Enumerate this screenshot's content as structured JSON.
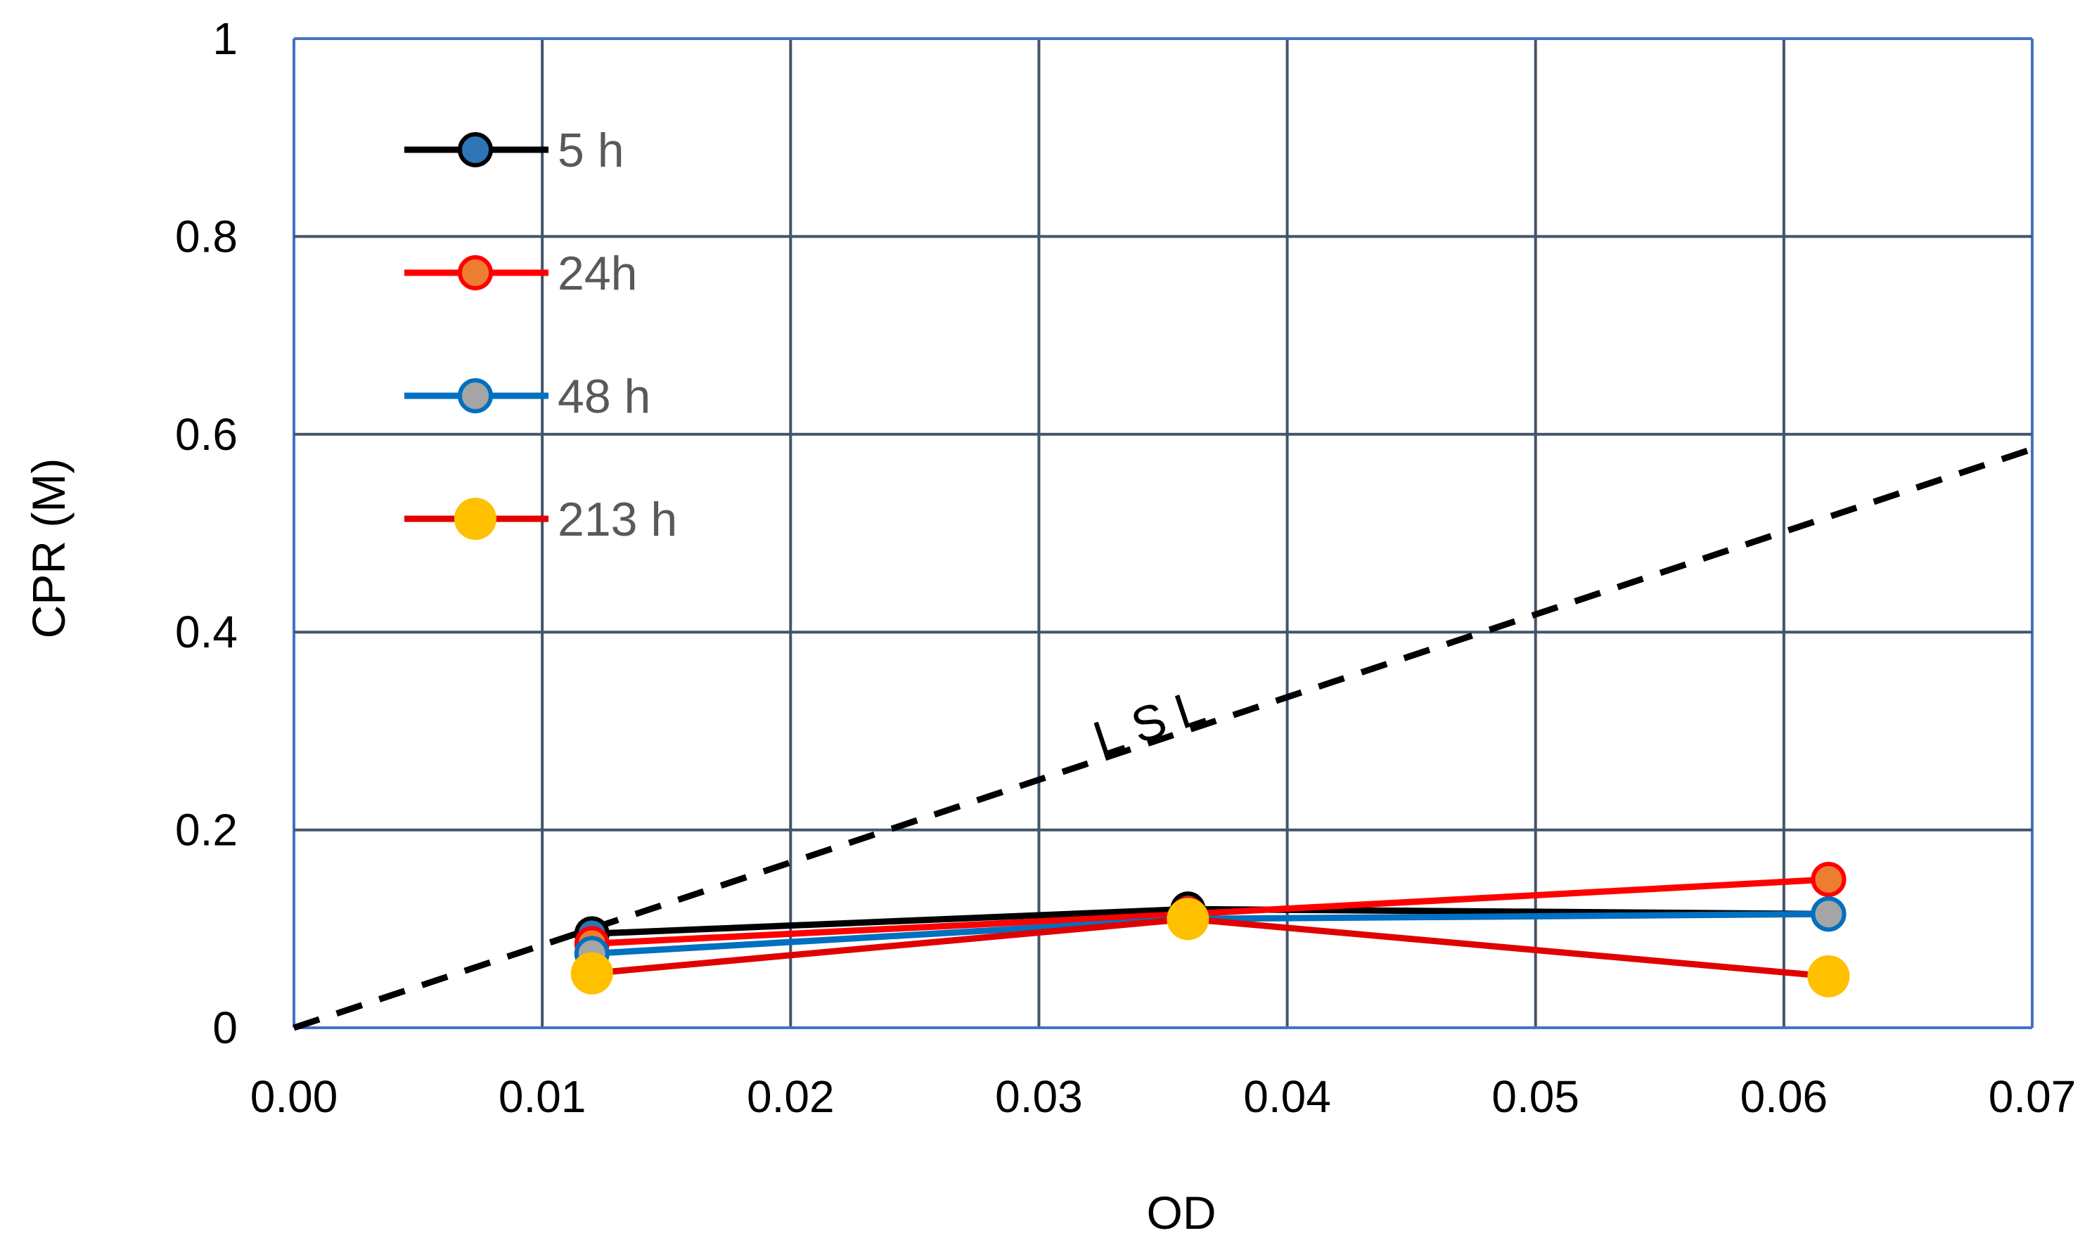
{
  "chart_data": {
    "type": "line",
    "xlabel": "OD",
    "ylabel": "CPR (M)",
    "xlim": [
      0,
      0.07
    ],
    "ylim": [
      0,
      1
    ],
    "x_ticks": [
      "0.00",
      "0.01",
      "0.02",
      "0.03",
      "0.04",
      "0.05",
      "0.06",
      "0.07"
    ],
    "y_ticks": [
      "0",
      "0.2",
      "0.4",
      "0.6",
      "0.8",
      "1"
    ],
    "grid": true,
    "legend_position": "top-left",
    "series": [
      {
        "name": "5 h",
        "line_color": "#000000",
        "marker_fill": "#2e75b6",
        "marker_edge": "#000000",
        "x": [
          0.012,
          0.036,
          0.0618
        ],
        "y": [
          0.095,
          0.12,
          0.115
        ]
      },
      {
        "name": "24h",
        "line_color": "#ff0000",
        "marker_fill": "#ed7d31",
        "marker_edge": "#ff0000",
        "x": [
          0.012,
          0.036,
          0.0618
        ],
        "y": [
          0.085,
          0.115,
          0.15
        ]
      },
      {
        "name": "48 h",
        "line_color": "#0070c0",
        "marker_fill": "#a5a5a5",
        "marker_edge": "#0070c0",
        "x": [
          0.012,
          0.036,
          0.0618
        ],
        "y": [
          0.075,
          0.11,
          0.115
        ]
      },
      {
        "name": "213 h",
        "line_color": "#e00000",
        "marker_fill": "#ffc000",
        "marker_edge": "#ffc000",
        "x": [
          0.012,
          0.036,
          0.0618
        ],
        "y": [
          0.055,
          0.11,
          0.052
        ]
      }
    ],
    "reference_line": {
      "label": "LSL",
      "style": "dashed",
      "color": "#000000",
      "x": [
        0,
        0.07
      ],
      "y": [
        0,
        0.585
      ]
    }
  }
}
